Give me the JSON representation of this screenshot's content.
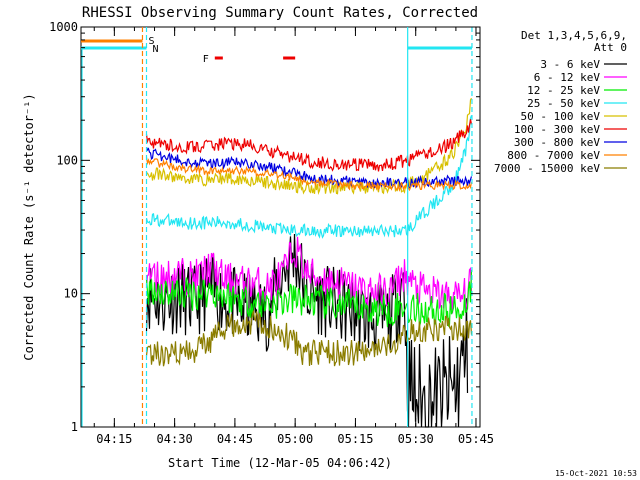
{
  "colors": {
    "3-6": "#000000",
    "6-12": "#ff00ff",
    "12-25": "#00ee00",
    "25-50": "#22e6f2",
    "50-100": "#d8c000",
    "100-300": "#ee0000",
    "300-800": "#0000e0",
    "800-7000": "#ff8000",
    "7000-15000": "#8b7d00"
  },
  "chart_data": {
    "type": "line",
    "title": "RHESSI Observing Summary Count Rates, Corrected",
    "xlabel": "Start Time (12-Mar-05 04:06:42)",
    "ylabel": "Corrected Count Rate (s⁻¹ detector⁻¹)",
    "xlim": [
      "04:06:42",
      "05:46:00"
    ],
    "ylim": [
      1,
      1000
    ],
    "yscale": "log",
    "x_ticks": [
      "04:15",
      "04:30",
      "04:45",
      "05:00",
      "05:15",
      "05:30",
      "05:45"
    ],
    "y_ticks": [
      "1",
      "10",
      "100",
      "1000"
    ],
    "legend_header": [
      "Det 1,3,4,5,6,9,",
      "Att 0"
    ],
    "legend_position": "outside-right",
    "timestamp": "15-Oct-2021 10:53",
    "annotations": {
      "S": "S",
      "N": "N",
      "F": "F",
      "flare_intervals": [
        [
          "04:40",
          "04:42"
        ],
        [
          "04:57",
          "05:00"
        ]
      ],
      "saa_interval": [
        "04:06:42",
        "04:22"
      ],
      "night_intervals": [
        [
          "04:06:42",
          "04:23"
        ],
        [
          "05:28",
          "05:44"
        ]
      ],
      "vertical_lines": [
        {
          "time": "04:22",
          "style": "dashed",
          "color": "orange"
        },
        {
          "time": "04:23",
          "style": "dashed",
          "color": "cyan"
        },
        {
          "time": "05:28",
          "style": "solid",
          "color": "cyan"
        },
        {
          "time": "05:44",
          "style": "dashed",
          "color": "cyan"
        }
      ]
    },
    "series": [
      {
        "name": "3 - 6 keV",
        "key": "3-6",
        "x": [
          "04:23",
          "04:27",
          "04:31",
          "04:35",
          "04:39",
          "04:42",
          "04:46",
          "04:50",
          "04:53",
          "04:57",
          "05:00",
          "05:03",
          "05:07",
          "05:11",
          "05:15",
          "05:19",
          "05:23",
          "05:26",
          "05:27",
          "05:28",
          "05:32",
          "05:36",
          "05:40",
          "05:43"
        ],
        "y": [
          10,
          9,
          9.5,
          8.5,
          11,
          9,
          8,
          7.5,
          7,
          15,
          20,
          10,
          9,
          8,
          7,
          6.5,
          6.5,
          9,
          15,
          2,
          1.5,
          1.6,
          2,
          4
        ]
      },
      {
        "name": "6 - 12 keV",
        "key": "6-12",
        "x": [
          "04:23",
          "04:27",
          "04:31",
          "04:35",
          "04:39",
          "04:42",
          "04:46",
          "04:50",
          "04:53",
          "04:57",
          "05:00",
          "05:03",
          "05:07",
          "05:11",
          "05:15",
          "05:19",
          "05:23",
          "05:27",
          "05:30",
          "05:34",
          "05:38",
          "05:42",
          "05:44"
        ],
        "y": [
          14,
          13,
          14,
          13,
          16,
          13,
          12,
          12,
          11,
          14,
          22,
          14,
          13,
          12,
          11,
          10.5,
          10,
          14,
          11,
          10,
          9.5,
          9.5,
          12
        ]
      },
      {
        "name": "12 - 25 keV",
        "key": "12-25",
        "x": [
          "04:23",
          "04:27",
          "04:31",
          "04:35",
          "04:39",
          "04:43",
          "04:47",
          "04:51",
          "04:55",
          "04:59",
          "05:03",
          "05:07",
          "05:11",
          "05:15",
          "05:19",
          "05:23",
          "05:27",
          "05:31",
          "05:35",
          "05:39",
          "05:42",
          "05:44"
        ],
        "y": [
          11,
          10.5,
          10,
          10,
          10.5,
          9.5,
          9,
          8.5,
          8.5,
          9,
          9,
          8.5,
          8,
          8,
          7.5,
          7.5,
          8,
          7.5,
          7.5,
          7.5,
          8,
          12
        ]
      },
      {
        "name": "25 - 50 keV",
        "key": "25-50",
        "x": [
          "04:23",
          "04:28",
          "04:33",
          "04:38",
          "04:43",
          "04:48",
          "04:53",
          "04:58",
          "05:03",
          "05:08",
          "05:13",
          "05:18",
          "05:23",
          "05:28",
          "05:32",
          "05:36",
          "05:39",
          "05:41",
          "05:43",
          "05:44"
        ],
        "y": [
          37,
          35,
          34,
          34,
          34,
          33,
          31,
          30,
          29.5,
          29.5,
          29.5,
          29.5,
          29.5,
          30,
          40,
          52,
          65,
          85,
          140,
          230
        ]
      },
      {
        "name": "50 - 100 keV",
        "key": "50-100",
        "x": [
          "04:23",
          "04:28",
          "04:33",
          "04:38",
          "04:43",
          "04:48",
          "04:53",
          "04:58",
          "05:03",
          "05:08",
          "05:13",
          "05:18",
          "05:23",
          "05:28",
          "05:32",
          "05:36",
          "05:39",
          "05:41",
          "05:43",
          "05:44"
        ],
        "y": [
          80,
          76,
          73,
          72,
          74,
          72,
          68,
          65,
          63,
          63,
          63,
          63,
          63,
          65,
          75,
          90,
          110,
          140,
          200,
          320
        ]
      },
      {
        "name": "100 - 300 keV",
        "key": "100-300",
        "x": [
          "04:23",
          "04:28",
          "04:33",
          "04:38",
          "04:43",
          "04:48",
          "04:53",
          "04:58",
          "05:03",
          "05:08",
          "05:13",
          "05:18",
          "05:23",
          "05:28",
          "05:32",
          "05:36",
          "05:39",
          "05:41",
          "05:43",
          "05:44"
        ],
        "y": [
          140,
          130,
          125,
          128,
          135,
          130,
          118,
          108,
          100,
          95,
          92,
          92,
          92,
          100,
          112,
          120,
          135,
          150,
          175,
          210
        ]
      },
      {
        "name": "300 - 800 keV",
        "key": "300-800",
        "x": [
          "04:23",
          "04:28",
          "04:33",
          "04:38",
          "04:43",
          "04:48",
          "04:53",
          "04:58",
          "05:03",
          "05:08",
          "05:13",
          "05:18",
          "05:23",
          "05:28",
          "05:33",
          "05:38",
          "05:44"
        ],
        "y": [
          115,
          105,
          98,
          95,
          96,
          95,
          90,
          82,
          76,
          72,
          70,
          68,
          68,
          68,
          69,
          70,
          70
        ]
      },
      {
        "name": "800 - 7000 keV",
        "key": "800-7000",
        "x": [
          "04:23",
          "04:28",
          "04:33",
          "04:38",
          "04:43",
          "04:48",
          "04:53",
          "04:58",
          "05:03",
          "05:08",
          "05:13",
          "05:18",
          "05:23",
          "05:28",
          "05:33",
          "05:38",
          "05:44"
        ],
        "y": [
          100,
          92,
          86,
          83,
          84,
          83,
          80,
          76,
          70,
          67,
          65,
          64,
          64,
          64,
          65,
          65,
          64
        ]
      },
      {
        "name": "7000 - 15000 keV",
        "key": "7000-15000",
        "x": [
          "04:23",
          "04:26",
          "04:30",
          "04:34",
          "04:38",
          "04:41",
          "04:44",
          "04:48",
          "04:52",
          "04:56",
          "04:59",
          "05:02",
          "05:06",
          "05:10",
          "05:14",
          "05:18",
          "05:22",
          "05:26",
          "05:28",
          "05:30",
          "05:34",
          "05:38",
          "05:42",
          "05:44"
        ],
        "y": [
          3.2,
          3.6,
          3.6,
          3.6,
          4.2,
          5.0,
          5.8,
          6.2,
          6.2,
          5.2,
          4.6,
          3.6,
          3.6,
          3.6,
          3.6,
          3.6,
          3.8,
          4.8,
          5.2,
          5.4,
          5.4,
          5.4,
          5.4,
          5.6
        ]
      }
    ]
  }
}
